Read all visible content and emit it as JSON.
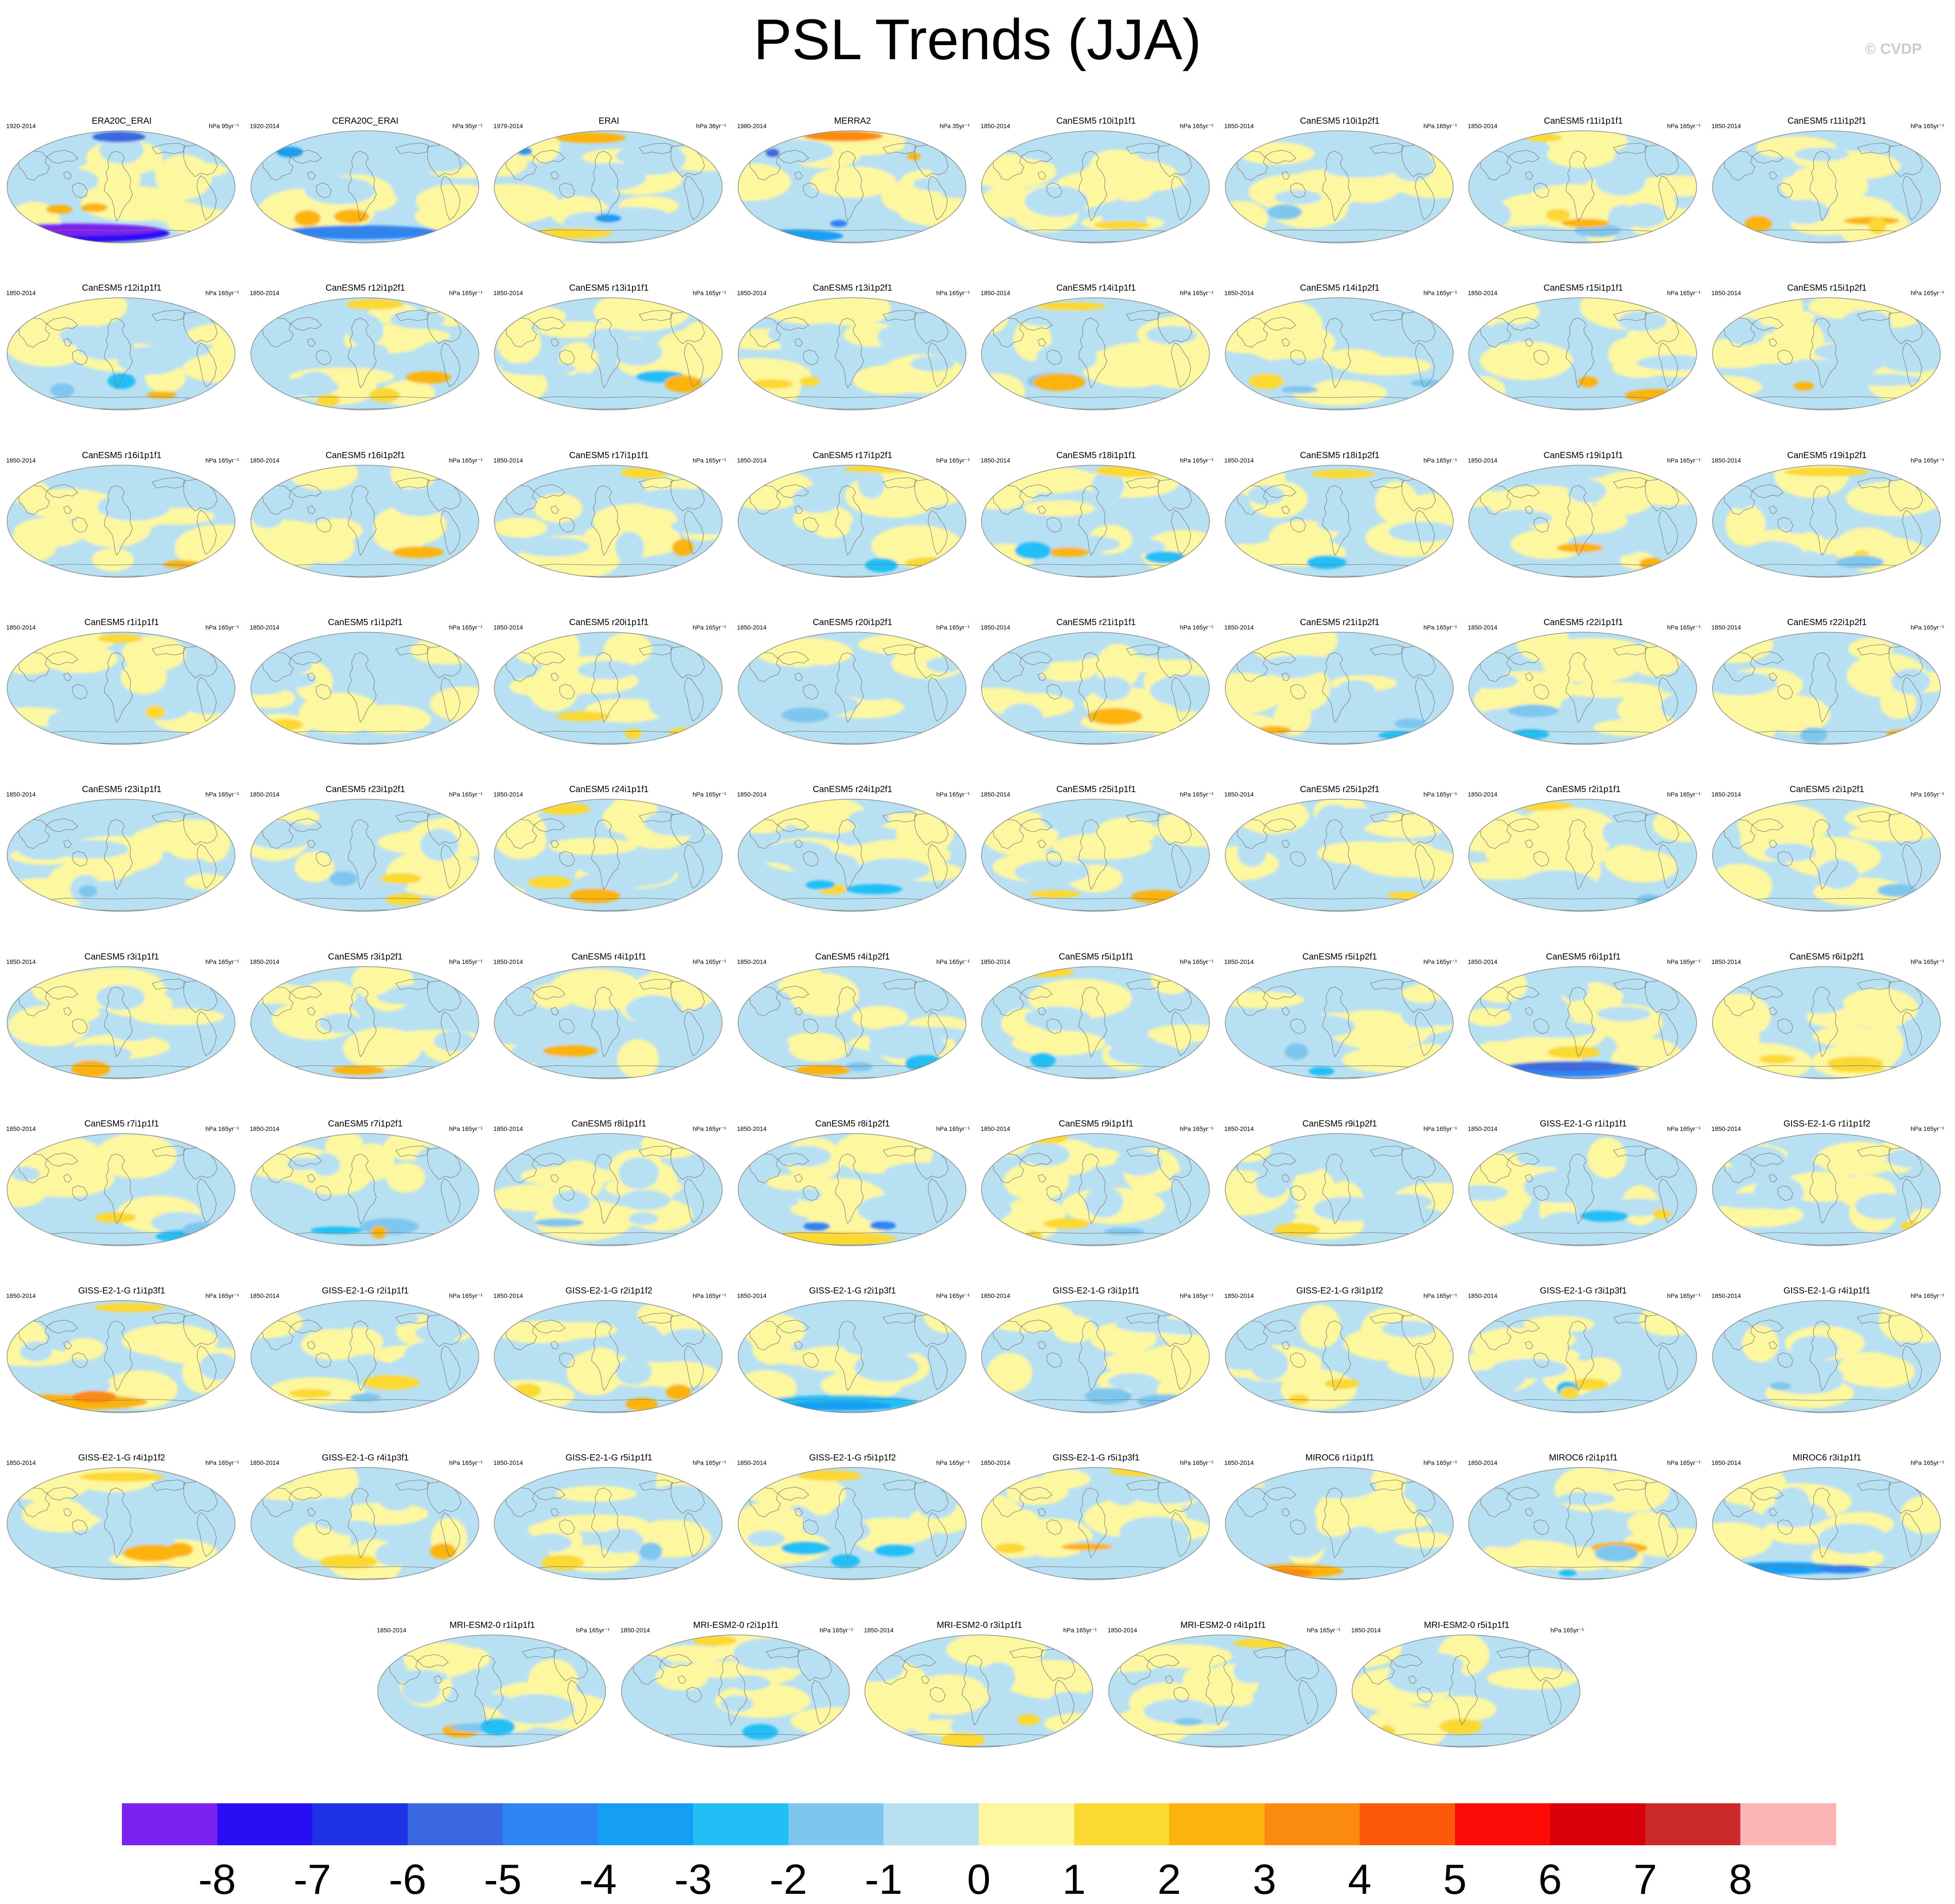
{
  "title": "PSL Trends (JJA)",
  "watermark": "© CVDP",
  "chart_data": {
    "type": "heatmap",
    "title": "PSL Trends (JJA)",
    "projection": "global map",
    "units_prefix": "hPa",
    "colorbar": {
      "labels": [
        "-8",
        "-7",
        "-6",
        "-5",
        "-4",
        "-3",
        "-2",
        "-1",
        "0",
        "1",
        "2",
        "3",
        "4",
        "5",
        "6",
        "7",
        "8"
      ],
      "colors": [
        "#7b22f0",
        "#2a0cf5",
        "#1f32e6",
        "#3a68df",
        "#2f84f3",
        "#149ff5",
        "#22bff6",
        "#7fc6ee",
        "#b8e0f3",
        "#fdf7a0",
        "#fcd832",
        "#fcb30b",
        "#fb8a10",
        "#fb5a0b",
        "#fc0a06",
        "#d90009",
        "#cc2a2a",
        "#fcb4b4"
      ]
    },
    "panels": [
      {
        "title": "ERA20C_ERAI",
        "years": "1920-2014",
        "trend": "hPa 95yr⁻¹"
      },
      {
        "title": "CERA20C_ERAI",
        "years": "1920-2014",
        "trend": "hPa 95yr⁻¹"
      },
      {
        "title": "ERAI",
        "years": "1979-2014",
        "trend": "hPa 36yr⁻¹"
      },
      {
        "title": "MERRA2",
        "years": "1980-2014",
        "trend": "hPa 35yr⁻¹"
      },
      {
        "title": "CanESM5 r10i1p1f1",
        "years": "1850-2014",
        "trend": "hPa 165yr⁻¹"
      },
      {
        "title": "CanESM5 r10i1p2f1",
        "years": "1850-2014",
        "trend": "hPa 165yr⁻¹"
      },
      {
        "title": "CanESM5 r11i1p1f1",
        "years": "1850-2014",
        "trend": "hPa 165yr⁻¹"
      },
      {
        "title": "CanESM5 r11i1p2f1",
        "years": "1850-2014",
        "trend": "hPa 165yr⁻¹"
      },
      {
        "title": "CanESM5 r12i1p1f1",
        "years": "1850-2014",
        "trend": "hPa 165yr⁻¹"
      },
      {
        "title": "CanESM5 r12i1p2f1",
        "years": "1850-2014",
        "trend": "hPa 165yr⁻¹"
      },
      {
        "title": "CanESM5 r13i1p1f1",
        "years": "1850-2014",
        "trend": "hPa 165yr⁻¹"
      },
      {
        "title": "CanESM5 r13i1p2f1",
        "years": "1850-2014",
        "trend": "hPa 165yr⁻¹"
      },
      {
        "title": "CanESM5 r14i1p1f1",
        "years": "1850-2014",
        "trend": "hPa 165yr⁻¹"
      },
      {
        "title": "CanESM5 r14i1p2f1",
        "years": "1850-2014",
        "trend": "hPa 165yr⁻¹"
      },
      {
        "title": "CanESM5 r15i1p1f1",
        "years": "1850-2014",
        "trend": "hPa 165yr⁻¹"
      },
      {
        "title": "CanESM5 r15i1p2f1",
        "years": "1850-2014",
        "trend": "hPa 165yr⁻¹"
      },
      {
        "title": "CanESM5 r16i1p1f1",
        "years": "1850-2014",
        "trend": "hPa 165yr⁻¹"
      },
      {
        "title": "CanESM5 r16i1p2f1",
        "years": "1850-2014",
        "trend": "hPa 165yr⁻¹"
      },
      {
        "title": "CanESM5 r17i1p1f1",
        "years": "1850-2014",
        "trend": "hPa 165yr⁻¹"
      },
      {
        "title": "CanESM5 r17i1p2f1",
        "years": "1850-2014",
        "trend": "hPa 165yr⁻¹"
      },
      {
        "title": "CanESM5 r18i1p1f1",
        "years": "1850-2014",
        "trend": "hPa 165yr⁻¹"
      },
      {
        "title": "CanESM5 r18i1p2f1",
        "years": "1850-2014",
        "trend": "hPa 165yr⁻¹"
      },
      {
        "title": "CanESM5 r19i1p1f1",
        "years": "1850-2014",
        "trend": "hPa 165yr⁻¹"
      },
      {
        "title": "CanESM5 r19i1p2f1",
        "years": "1850-2014",
        "trend": "hPa 165yr⁻¹"
      },
      {
        "title": "CanESM5 r1i1p1f1",
        "years": "1850-2014",
        "trend": "hPa 165yr⁻¹"
      },
      {
        "title": "CanESM5 r1i1p2f1",
        "years": "1850-2014",
        "trend": "hPa 165yr⁻¹"
      },
      {
        "title": "CanESM5 r20i1p1f1",
        "years": "1850-2014",
        "trend": "hPa 165yr⁻¹"
      },
      {
        "title": "CanESM5 r20i1p2f1",
        "years": "1850-2014",
        "trend": "hPa 165yr⁻¹"
      },
      {
        "title": "CanESM5 r21i1p1f1",
        "years": "1850-2014",
        "trend": "hPa 165yr⁻¹"
      },
      {
        "title": "CanESM5 r21i1p2f1",
        "years": "1850-2014",
        "trend": "hPa 165yr⁻¹"
      },
      {
        "title": "CanESM5 r22i1p1f1",
        "years": "1850-2014",
        "trend": "hPa 165yr⁻¹"
      },
      {
        "title": "CanESM5 r22i1p2f1",
        "years": "1850-2014",
        "trend": "hPa 165yr⁻¹"
      },
      {
        "title": "CanESM5 r23i1p1f1",
        "years": "1850-2014",
        "trend": "hPa 165yr⁻¹"
      },
      {
        "title": "CanESM5 r23i1p2f1",
        "years": "1850-2014",
        "trend": "hPa 165yr⁻¹"
      },
      {
        "title": "CanESM5 r24i1p1f1",
        "years": "1850-2014",
        "trend": "hPa 165yr⁻¹"
      },
      {
        "title": "CanESM5 r24i1p2f1",
        "years": "1850-2014",
        "trend": "hPa 165yr⁻¹"
      },
      {
        "title": "CanESM5 r25i1p1f1",
        "years": "1850-2014",
        "trend": "hPa 165yr⁻¹"
      },
      {
        "title": "CanESM5 r25i1p2f1",
        "years": "1850-2014",
        "trend": "hPa 165yr⁻¹"
      },
      {
        "title": "CanESM5 r2i1p1f1",
        "years": "1850-2014",
        "trend": "hPa 165yr⁻¹"
      },
      {
        "title": "CanESM5 r2i1p2f1",
        "years": "1850-2014",
        "trend": "hPa 165yr⁻¹"
      },
      {
        "title": "CanESM5 r3i1p1f1",
        "years": "1850-2014",
        "trend": "hPa 165yr⁻¹"
      },
      {
        "title": "CanESM5 r3i1p2f1",
        "years": "1850-2014",
        "trend": "hPa 165yr⁻¹"
      },
      {
        "title": "CanESM5 r4i1p1f1",
        "years": "1850-2014",
        "trend": "hPa 165yr⁻¹"
      },
      {
        "title": "CanESM5 r4i1p2f1",
        "years": "1850-2014",
        "trend": "hPa 165yr⁻¹"
      },
      {
        "title": "CanESM5 r5i1p1f1",
        "years": "1850-2014",
        "trend": "hPa 165yr⁻¹"
      },
      {
        "title": "CanESM5 r5i1p2f1",
        "years": "1850-2014",
        "trend": "hPa 165yr⁻¹"
      },
      {
        "title": "CanESM5 r6i1p1f1",
        "years": "1850-2014",
        "trend": "hPa 165yr⁻¹"
      },
      {
        "title": "CanESM5 r6i1p2f1",
        "years": "1850-2014",
        "trend": "hPa 165yr⁻¹"
      },
      {
        "title": "CanESM5 r7i1p1f1",
        "years": "1850-2014",
        "trend": "hPa 165yr⁻¹"
      },
      {
        "title": "CanESM5 r7i1p2f1",
        "years": "1850-2014",
        "trend": "hPa 165yr⁻¹"
      },
      {
        "title": "CanESM5 r8i1p1f1",
        "years": "1850-2014",
        "trend": "hPa 165yr⁻¹"
      },
      {
        "title": "CanESM5 r8i1p2f1",
        "years": "1850-2014",
        "trend": "hPa 165yr⁻¹"
      },
      {
        "title": "CanESM5 r9i1p1f1",
        "years": "1850-2014",
        "trend": "hPa 165yr⁻¹"
      },
      {
        "title": "CanESM5 r9i1p2f1",
        "years": "1850-2014",
        "trend": "hPa 165yr⁻¹"
      },
      {
        "title": "GISS-E2-1-G r1i1p1f1",
        "years": "1850-2014",
        "trend": "hPa 165yr⁻¹"
      },
      {
        "title": "GISS-E2-1-G r1i1p1f2",
        "years": "1850-2014",
        "trend": "hPa 165yr⁻¹"
      },
      {
        "title": "GISS-E2-1-G r1i1p3f1",
        "years": "1850-2014",
        "trend": "hPa 165yr⁻¹"
      },
      {
        "title": "GISS-E2-1-G r2i1p1f1",
        "years": "1850-2014",
        "trend": "hPa 165yr⁻¹"
      },
      {
        "title": "GISS-E2-1-G r2i1p1f2",
        "years": "1850-2014",
        "trend": "hPa 165yr⁻¹"
      },
      {
        "title": "GISS-E2-1-G r2i1p3f1",
        "years": "1850-2014",
        "trend": "hPa 165yr⁻¹"
      },
      {
        "title": "GISS-E2-1-G r3i1p1f1",
        "years": "1850-2014",
        "trend": "hPa 165yr⁻¹"
      },
      {
        "title": "GISS-E2-1-G r3i1p1f2",
        "years": "1850-2014",
        "trend": "hPa 165yr⁻¹"
      },
      {
        "title": "GISS-E2-1-G r3i1p3f1",
        "years": "1850-2014",
        "trend": "hPa 165yr⁻¹"
      },
      {
        "title": "GISS-E2-1-G r4i1p1f1",
        "years": "1850-2014",
        "trend": "hPa 165yr⁻¹"
      },
      {
        "title": "GISS-E2-1-G r4i1p1f2",
        "years": "1850-2014",
        "trend": "hPa 165yr⁻¹"
      },
      {
        "title": "GISS-E2-1-G r4i1p3f1",
        "years": "1850-2014",
        "trend": "hPa 165yr⁻¹"
      },
      {
        "title": "GISS-E2-1-G r5i1p1f1",
        "years": "1850-2014",
        "trend": "hPa 165yr⁻¹"
      },
      {
        "title": "GISS-E2-1-G r5i1p1f2",
        "years": "1850-2014",
        "trend": "hPa 165yr⁻¹"
      },
      {
        "title": "GISS-E2-1-G r5i1p3f1",
        "years": "1850-2014",
        "trend": "hPa 165yr⁻¹"
      },
      {
        "title": "MIROC6 r1i1p1f1",
        "years": "1850-2014",
        "trend": "hPa 165yr⁻¹"
      },
      {
        "title": "MIROC6 r2i1p1f1",
        "years": "1850-2014",
        "trend": "hPa 165yr⁻¹"
      },
      {
        "title": "MIROC6 r3i1p1f1",
        "years": "1850-2014",
        "trend": "hPa 165yr⁻¹"
      },
      {
        "title": "MRI-ESM2-0 r1i1p1f1",
        "years": "1850-2014",
        "trend": "hPa 165yr⁻¹"
      },
      {
        "title": "MRI-ESM2-0 r2i1p1f1",
        "years": "1850-2014",
        "trend": "hPa 165yr⁻¹"
      },
      {
        "title": "MRI-ESM2-0 r3i1p1f1",
        "years": "1850-2014",
        "trend": "hPa 165yr⁻¹"
      },
      {
        "title": "MRI-ESM2-0 r4i1p1f1",
        "years": "1850-2014",
        "trend": "hPa 165yr⁻¹"
      },
      {
        "title": "MRI-ESM2-0 r5i1p1f1",
        "years": "1850-2014",
        "trend": "hPa 165yr⁻¹"
      }
    ]
  }
}
